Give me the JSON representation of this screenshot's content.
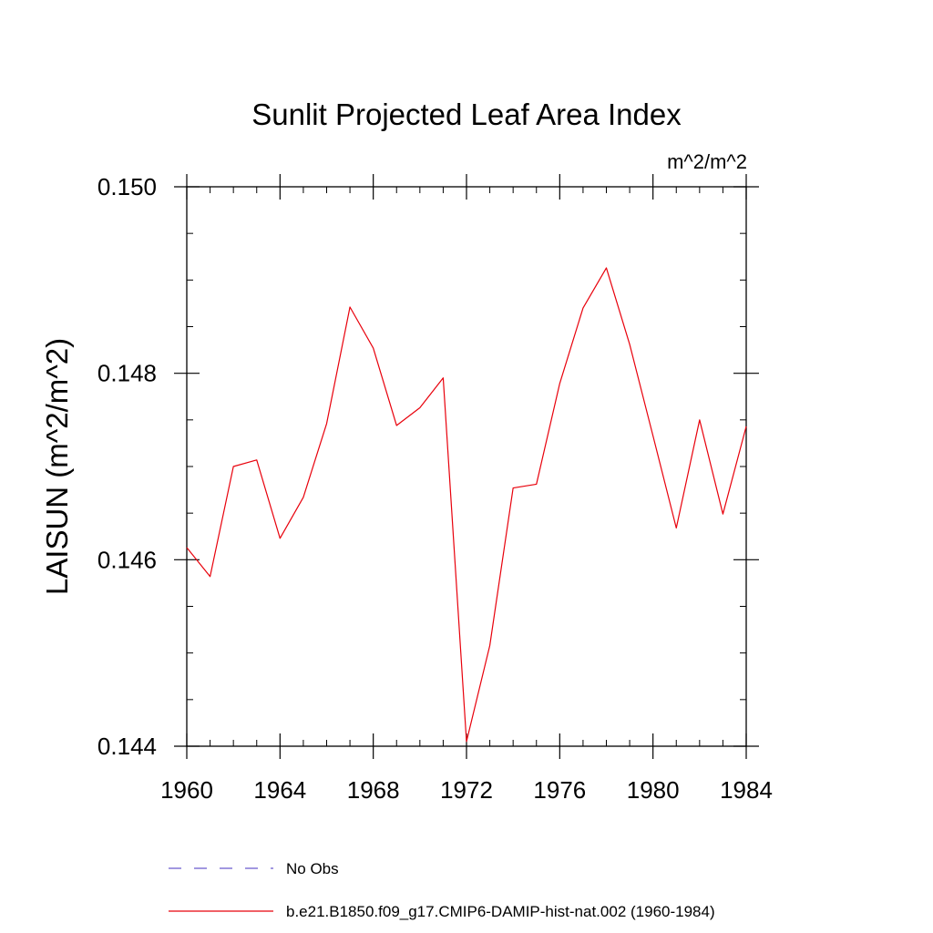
{
  "chart_data": {
    "type": "line",
    "title": "Sunlit Projected Leaf Area Index",
    "units": "m^2/m^2",
    "ylabel": "LAISUN  (m^2/m^2)",
    "xlabel": "",
    "xlim": [
      1960,
      1984
    ],
    "ylim": [
      0.144,
      0.15
    ],
    "x_ticks": [
      1960,
      1964,
      1968,
      1972,
      1976,
      1980,
      1984
    ],
    "x_tick_labels": [
      "1960",
      "1964",
      "1968",
      "1972",
      "1976",
      "1980",
      "1984"
    ],
    "y_ticks": [
      0.144,
      0.146,
      0.148,
      0.15
    ],
    "y_tick_labels": [
      "0.144",
      "0.146",
      "0.148",
      "0.150"
    ],
    "x_minor_step": 1,
    "y_minor_step": 0.0005,
    "grid": false,
    "legend_position": "bottom",
    "series": [
      {
        "name": "b.e21.B1850.f09_g17.CMIP6-DAMIP-hist-nat.002 (1960-1984)",
        "color": "#e8000b",
        "style": "solid",
        "x": [
          1960,
          1961,
          1962,
          1963,
          1964,
          1965,
          1966,
          1967,
          1968,
          1969,
          1970,
          1971,
          1972,
          1973,
          1974,
          1975,
          1976,
          1977,
          1978,
          1979,
          1980,
          1981,
          1982,
          1983,
          1984
        ],
        "y": [
          0.14613,
          0.14582,
          0.147,
          0.14707,
          0.14623,
          0.14667,
          0.14746,
          0.14871,
          0.14827,
          0.14744,
          0.14763,
          0.14795,
          0.14405,
          0.14508,
          0.14677,
          0.14681,
          0.14789,
          0.1487,
          0.14913,
          0.14831,
          0.14733,
          0.14634,
          0.1475,
          0.14649,
          0.14743
        ]
      }
    ],
    "legend": [
      {
        "label": "No Obs",
        "color": "#6a5acd",
        "style": "dashed"
      },
      {
        "label": "b.e21.B1850.f09_g17.CMIP6-DAMIP-hist-nat.002 (1960-1984)",
        "color": "#e8000b",
        "style": "solid"
      }
    ]
  }
}
